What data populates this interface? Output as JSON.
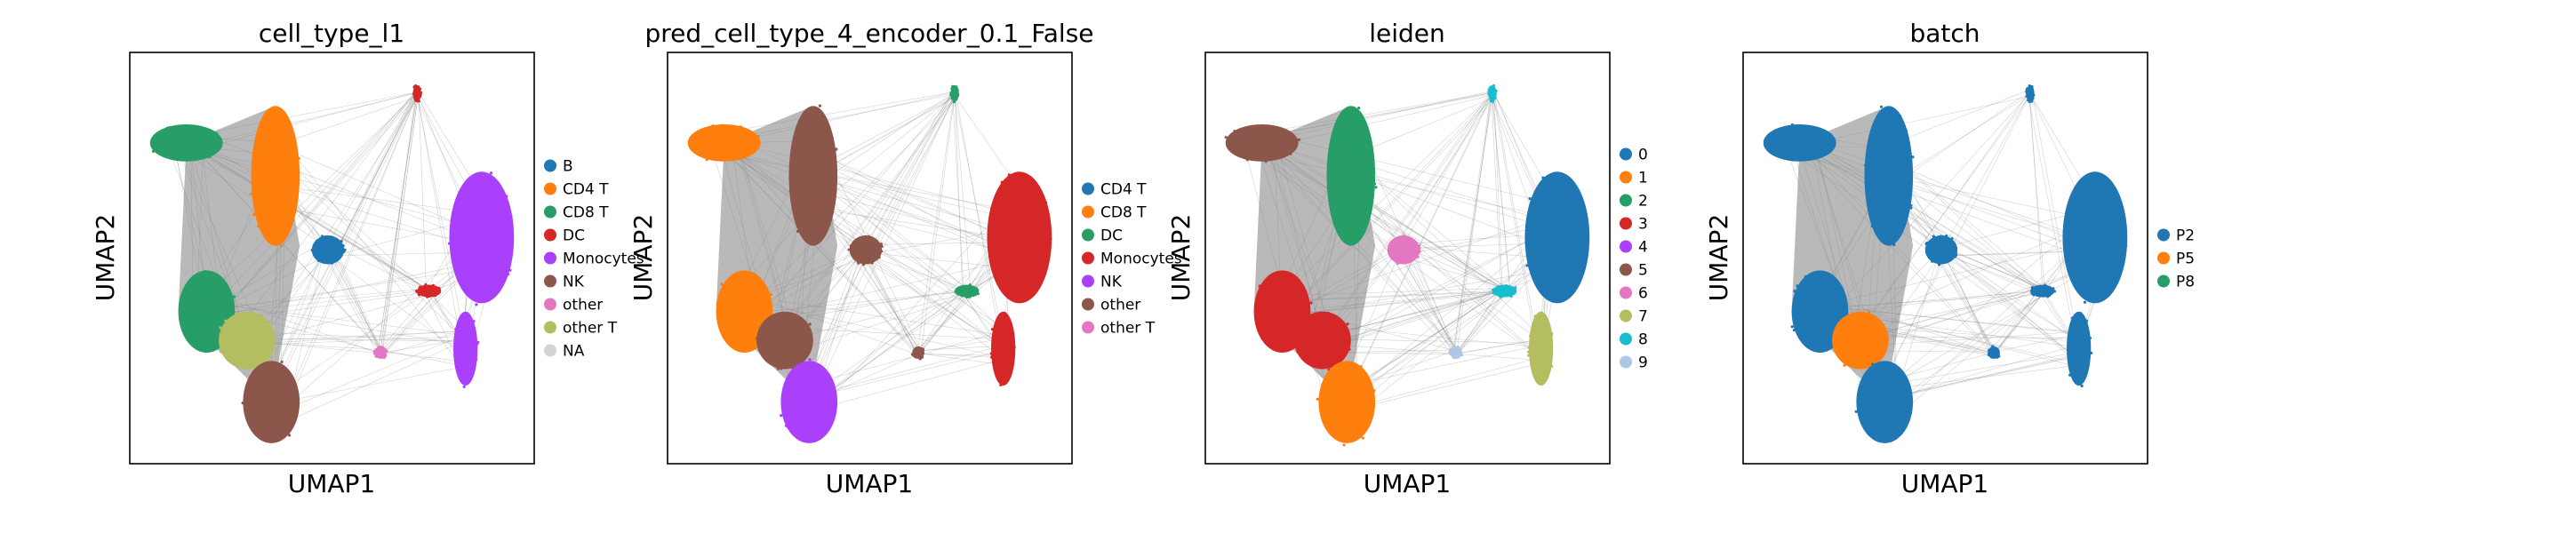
{
  "chart_data": [
    {
      "type": "scatter",
      "title": "cell_type_l1",
      "xlabel": "UMAP1",
      "ylabel": "UMAP2",
      "grid": false,
      "ticks": false,
      "legend_position": "right",
      "legend": [
        {
          "label": "B",
          "color": "#1f77b4"
        },
        {
          "label": "CD4 T",
          "color": "#ff7f0e"
        },
        {
          "label": "CD8 T",
          "color": "#279e68"
        },
        {
          "label": "DC",
          "color": "#d62728"
        },
        {
          "label": "Monocytes",
          "color": "#aa40fc"
        },
        {
          "label": "NK",
          "color": "#8c564b"
        },
        {
          "label": "other",
          "color": "#e377c2"
        },
        {
          "label": "other T",
          "color": "#b5bd61"
        },
        {
          "label": "NA",
          "color": "#d3d3d3"
        }
      ]
    },
    {
      "type": "scatter",
      "title": "pred_cell_type_4_encoder_0.1_False",
      "xlabel": "UMAP1",
      "ylabel": "UMAP2",
      "grid": false,
      "ticks": false,
      "legend_position": "right",
      "legend": [
        {
          "label": "CD4 T",
          "color": "#1f77b4"
        },
        {
          "label": "CD8 T",
          "color": "#ff7f0e"
        },
        {
          "label": "DC",
          "color": "#279e68"
        },
        {
          "label": "Monocytes",
          "color": "#d62728"
        },
        {
          "label": "NK",
          "color": "#aa40fc"
        },
        {
          "label": "other",
          "color": "#8c564b"
        },
        {
          "label": "other T",
          "color": "#e377c2"
        }
      ]
    },
    {
      "type": "scatter",
      "title": "leiden",
      "xlabel": "UMAP1",
      "ylabel": "UMAP2",
      "grid": false,
      "ticks": false,
      "legend_position": "right",
      "legend": [
        {
          "label": "0",
          "color": "#1f77b4"
        },
        {
          "label": "1",
          "color": "#ff7f0e"
        },
        {
          "label": "2",
          "color": "#279e68"
        },
        {
          "label": "3",
          "color": "#d62728"
        },
        {
          "label": "4",
          "color": "#aa40fc"
        },
        {
          "label": "5",
          "color": "#8c564b"
        },
        {
          "label": "6",
          "color": "#e377c2"
        },
        {
          "label": "7",
          "color": "#b5bd61"
        },
        {
          "label": "8",
          "color": "#17becf"
        },
        {
          "label": "9",
          "color": "#aec7e8"
        }
      ]
    },
    {
      "type": "scatter",
      "title": "batch",
      "xlabel": "UMAP1",
      "ylabel": "UMAP2",
      "grid": false,
      "ticks": false,
      "legend_position": "right",
      "legend": [
        {
          "label": "P2",
          "color": "#1f77b4"
        },
        {
          "label": "P5",
          "color": "#ff7f0e"
        },
        {
          "label": "P8",
          "color": "#279e68"
        }
      ]
    }
  ]
}
